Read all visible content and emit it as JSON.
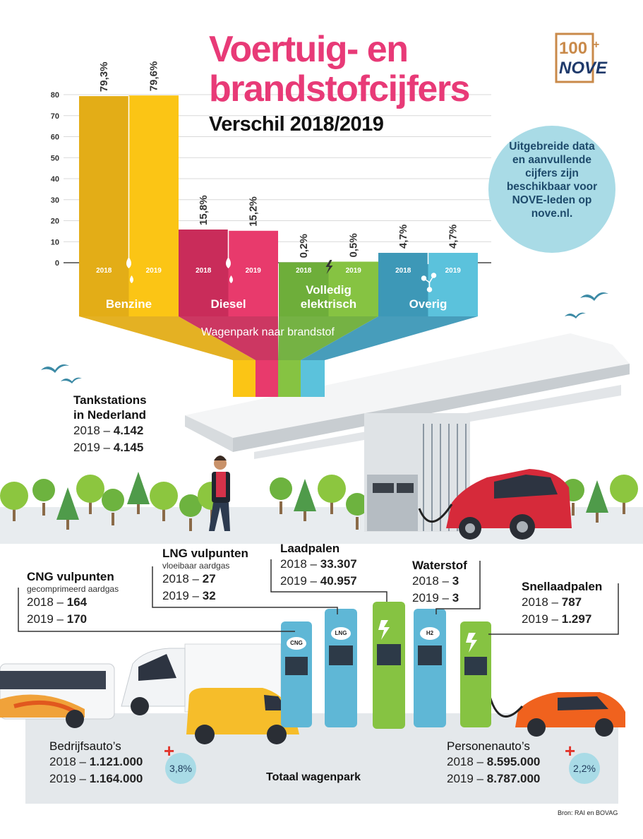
{
  "header": {
    "title_line1": "Voertuig- en",
    "title_line2": "brandstofcijfers",
    "subtitle": "Verschil 2018/2019",
    "logo_text": "100 NOVE"
  },
  "info": {
    "text": "Uitgebreide data\nen aanvullende\ncijfers zijn\nbeschikbaar voor\nNOVE-leden op\nnove.nl."
  },
  "chart_data": {
    "type": "bar",
    "title": "Wagenpark naar brandstof",
    "categories": [
      "Benzine",
      "Diesel",
      "Volledig elektrisch",
      "Overig"
    ],
    "category_lines": [
      [
        "Benzine"
      ],
      [
        "Diesel"
      ],
      [
        "Volledig",
        "elektrisch"
      ],
      [
        "Overig"
      ]
    ],
    "series": [
      {
        "name": "2018",
        "values": [
          79.3,
          15.8,
          0.2,
          4.7
        ],
        "labels": [
          "79,3%",
          "15,8%",
          "0,2%",
          "4,7%"
        ]
      },
      {
        "name": "2019",
        "values": [
          79.6,
          15.2,
          0.5,
          4.7
        ],
        "labels": [
          "79,6%",
          "15,2%",
          "0,5%",
          "4,7%"
        ]
      }
    ],
    "yticks": [
      0,
      10,
      20,
      30,
      40,
      50,
      60,
      70,
      80
    ],
    "ylim": [
      0,
      80
    ],
    "grid": true,
    "colors": {
      "Benzine": [
        "#e3ad17",
        "#fbc515"
      ],
      "Diesel": [
        "#c92c5a",
        "#e83a6c"
      ],
      "Volledig elektrisch": [
        "#6eae3a",
        "#86c342"
      ],
      "Overig": [
        "#3d98b7",
        "#5bc2dc"
      ]
    }
  },
  "stats": {
    "tankstations": {
      "title_line1": "Tankstations",
      "title_line2": "in Nederland",
      "y2018": "2018 – ",
      "v2018": "4.142",
      "y2019": "2019 – ",
      "v2019": "4.145"
    },
    "lng": {
      "title": "LNG vulpunten",
      "sub": "vloeibaar aardgas",
      "y2018": "2018 – ",
      "v2018": "27",
      "y2019": "2019 – ",
      "v2019": "32"
    },
    "laadpalen": {
      "title": "Laadpalen",
      "y2018": "2018 – ",
      "v2018": "33.307",
      "y2019": "2019 – ",
      "v2019": "40.957"
    },
    "waterstof": {
      "title": "Waterstof",
      "y2018": "2018 – ",
      "v2018": "3",
      "y2019": "2019 – ",
      "v2019": "3"
    },
    "cng": {
      "title": "CNG vulpunten",
      "sub": "gecomprimeerd aardgas",
      "y2018": "2018 – ",
      "v2018": "164",
      "y2019": "2019 – ",
      "v2019": "170"
    },
    "snellaadpalen": {
      "title": "Snellaadpalen",
      "y2018": "2018 – ",
      "v2018": "787",
      "y2019": "2019 – ",
      "v2019": "1.297"
    },
    "bedrijfsautos": {
      "title": "Bedrijfsauto’s",
      "y2018": "2018 – ",
      "v2018": "1.121.000",
      "y2019": "2019 – ",
      "v2019": "1.164.000",
      "growth": "3,8%"
    },
    "personenautos": {
      "title": "Personenauto’s",
      "y2018": "2018 – ",
      "v2018": "8.595.000",
      "y2019": "2019 – ",
      "v2019": "8.787.000",
      "growth": "2,2%"
    }
  },
  "pumps": [
    "CNG",
    "LNG",
    "H2"
  ],
  "footer": {
    "totaal": "Totaal wagenpark",
    "bron": "Bron: RAI en BOVAG"
  },
  "icons": [
    "fuel-drop-icon",
    "lightning-icon",
    "share-nodes-icon",
    "plus-icon",
    "bird-icon",
    "tree-icon"
  ]
}
